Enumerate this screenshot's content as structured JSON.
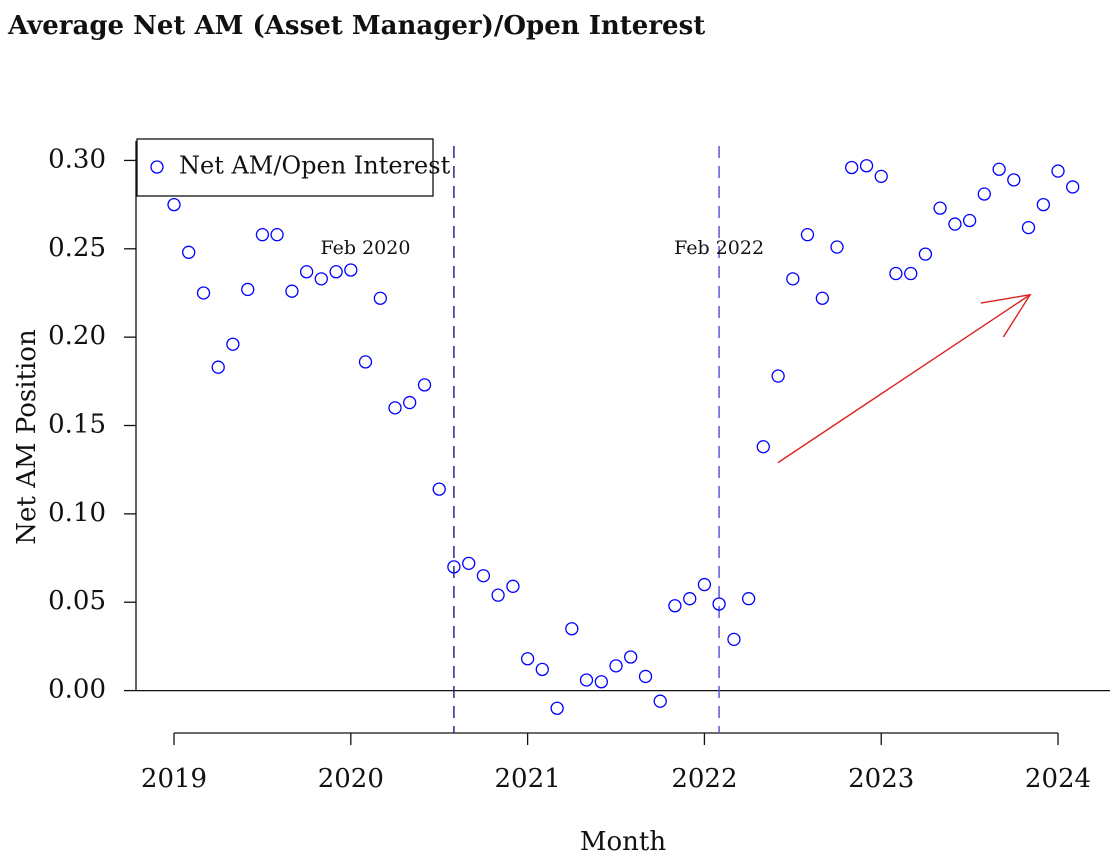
{
  "chart_data": {
    "type": "scatter",
    "title": "Average Net AM (Asset Manager)/Open Interest",
    "xlabel": "Month",
    "ylabel": "Net AM Position",
    "x": [
      2019,
      2019.083,
      2019.167,
      2019.25,
      2019.333,
      2019.417,
      2019.5,
      2019.583,
      2019.667,
      2019.75,
      2019.833,
      2019.917,
      2020,
      2020.083,
      2020.167,
      2020.25,
      2020.333,
      2020.417,
      2020.5,
      2020.583,
      2020.667,
      2020.75,
      2020.833,
      2020.917,
      2021,
      2021.083,
      2021.167,
      2021.25,
      2021.333,
      2021.417,
      2021.5,
      2021.583,
      2021.667,
      2021.75,
      2021.833,
      2021.917,
      2022,
      2022.083,
      2022.167,
      2022.25,
      2022.333,
      2022.417,
      2022.5,
      2022.583,
      2022.667,
      2022.75,
      2022.833,
      2022.917,
      2023,
      2023.083,
      2023.167,
      2023.25,
      2023.333,
      2023.417,
      2023.5,
      2023.583,
      2023.667,
      2023.75,
      2023.833,
      2023.917,
      2024,
      2024.083
    ],
    "series": [
      {
        "name": "Net AM/Open Interest",
        "color": "#0000ff",
        "values": [
          0.275,
          0.248,
          0.225,
          0.183,
          0.196,
          0.227,
          0.258,
          0.258,
          0.226,
          0.237,
          0.233,
          0.237,
          0.238,
          0.186,
          0.222,
          0.16,
          0.163,
          0.173,
          0.114,
          0.07,
          0.072,
          0.065,
          0.054,
          0.059,
          0.018,
          0.012,
          -0.01,
          0.035,
          0.006,
          0.005,
          0.014,
          0.019,
          0.008,
          -0.006,
          0.048,
          0.052,
          0.06,
          0.049,
          0.029,
          0.052,
          0.138,
          0.178,
          0.233,
          0.258,
          0.222,
          0.251,
          0.296,
          0.297,
          0.291,
          0.236,
          0.236,
          0.247,
          0.273,
          0.264,
          0.266,
          0.281,
          0.295,
          0.289,
          0.262,
          0.275,
          0.294,
          0.285
        ]
      }
    ],
    "xlim": [
      2018.785,
      2024.294
    ],
    "xticks": [
      2019,
      2020,
      2021,
      2022,
      2023,
      2024
    ],
    "ylim": [
      -0.024,
      0.311
    ],
    "yticks": [
      {
        "value": 0,
        "label": "0.00"
      },
      {
        "value": 0.05,
        "label": "0.05"
      },
      {
        "value": 0.1,
        "label": "0.10"
      },
      {
        "value": 0.15,
        "label": "0.15"
      },
      {
        "value": 0.2,
        "label": "0.20"
      },
      {
        "value": 0.25,
        "label": "0.25"
      },
      {
        "value": 0.3,
        "label": "0.30"
      }
    ],
    "hlines": [
      0
    ],
    "vlines": [
      {
        "x": 2020.583,
        "color": "#2a2a80"
      },
      {
        "x": 2022.083,
        "color": "#5a5ad6"
      }
    ],
    "annotations": [
      {
        "text": "Feb 2020",
        "x": 2020.083,
        "y": 0.25
      },
      {
        "text": "Feb 2022",
        "x": 2022.083,
        "y": 0.25
      }
    ],
    "arrow": {
      "x": [
        2022.416,
        2023.842
      ],
      "y": [
        0.129,
        0.224
      ],
      "color": "#dd2222"
    },
    "legend": "topleft"
  }
}
